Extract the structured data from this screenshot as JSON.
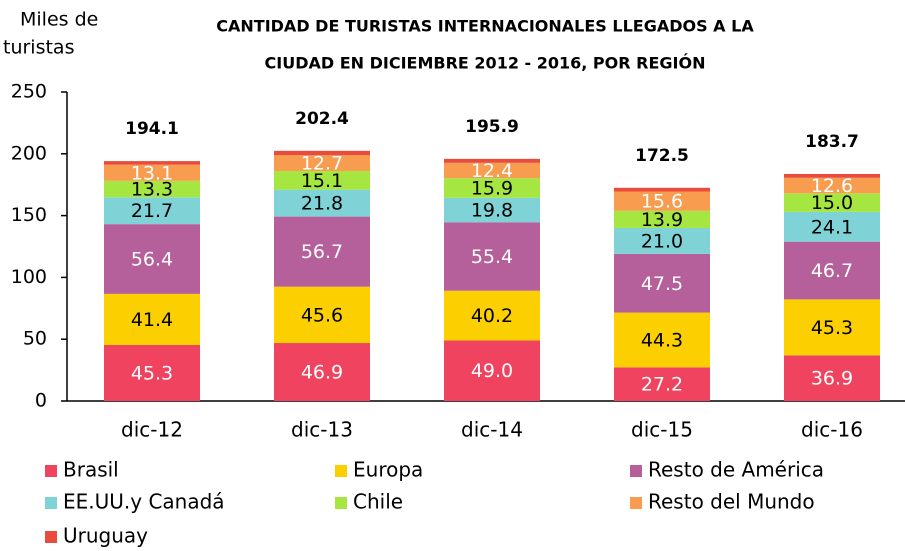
{
  "chart_data": {
    "type": "stacked_bar",
    "title": [
      "CANTIDAD DE TURISTAS INTERNACIONALES LLEGADOS A LA",
      "CIUDAD EN DICIEMBRE 2012 - 2016, POR REGIÓN"
    ],
    "ylabel": [
      "Miles de",
      "turistas"
    ],
    "categories": [
      "dic-12",
      "dic-13",
      "dic-14",
      "dic-15",
      "dic-16"
    ],
    "series": [
      {
        "name": "Brasil",
        "color": "#f0435f",
        "label_color": "#ffffff",
        "values": [
          45.3,
          46.9,
          49.0,
          27.2,
          36.9
        ],
        "value_labels": [
          "45.3",
          "46.9",
          "49.0",
          "27.2",
          "36.9"
        ]
      },
      {
        "name": "Europa",
        "color": "#fcd000",
        "label_color": "#000000",
        "values": [
          41.4,
          45.6,
          40.2,
          44.3,
          45.3
        ],
        "value_labels": [
          "41.4",
          "45.6",
          "40.2",
          "44.3",
          "45.3"
        ]
      },
      {
        "name": "Resto de América",
        "color": "#b5609a",
        "label_color": "#ffffff",
        "values": [
          56.4,
          56.7,
          55.4,
          47.5,
          46.7
        ],
        "value_labels": [
          "56.4",
          "56.7",
          "55.4",
          "47.5",
          "46.7"
        ]
      },
      {
        "name": "EE.UU.y Canadá",
        "color": "#7fd3d6",
        "label_color": "#000000",
        "values": [
          21.7,
          21.8,
          19.8,
          21.0,
          24.1
        ],
        "value_labels": [
          "21.7",
          "21.8",
          "19.8",
          "21.0",
          "24.1"
        ]
      },
      {
        "name": "Chile",
        "color": "#a5e640",
        "label_color": "#000000",
        "values": [
          13.3,
          15.1,
          15.9,
          13.9,
          15.0
        ],
        "value_labels": [
          "13.3",
          "15.1",
          "15.9",
          "13.9",
          "15.0"
        ]
      },
      {
        "name": "Resto del Mundo",
        "color": "#f89d4f",
        "label_color": "#ffffff",
        "values": [
          13.1,
          12.7,
          12.4,
          15.6,
          12.6
        ],
        "value_labels": [
          "13.1",
          "12.7",
          "12.4",
          "15.6",
          "12.6"
        ]
      },
      {
        "name": "Uruguay",
        "color": "#e84c3d",
        "values": [
          2.9,
          3.6,
          3.2,
          3.0,
          3.1
        ]
      }
    ],
    "totals": [
      194.1,
      202.4,
      195.9,
      172.5,
      183.7
    ],
    "ylim": [
      0,
      250
    ],
    "yticks": [
      0,
      50,
      100,
      150,
      200,
      250
    ],
    "grid": false
  }
}
